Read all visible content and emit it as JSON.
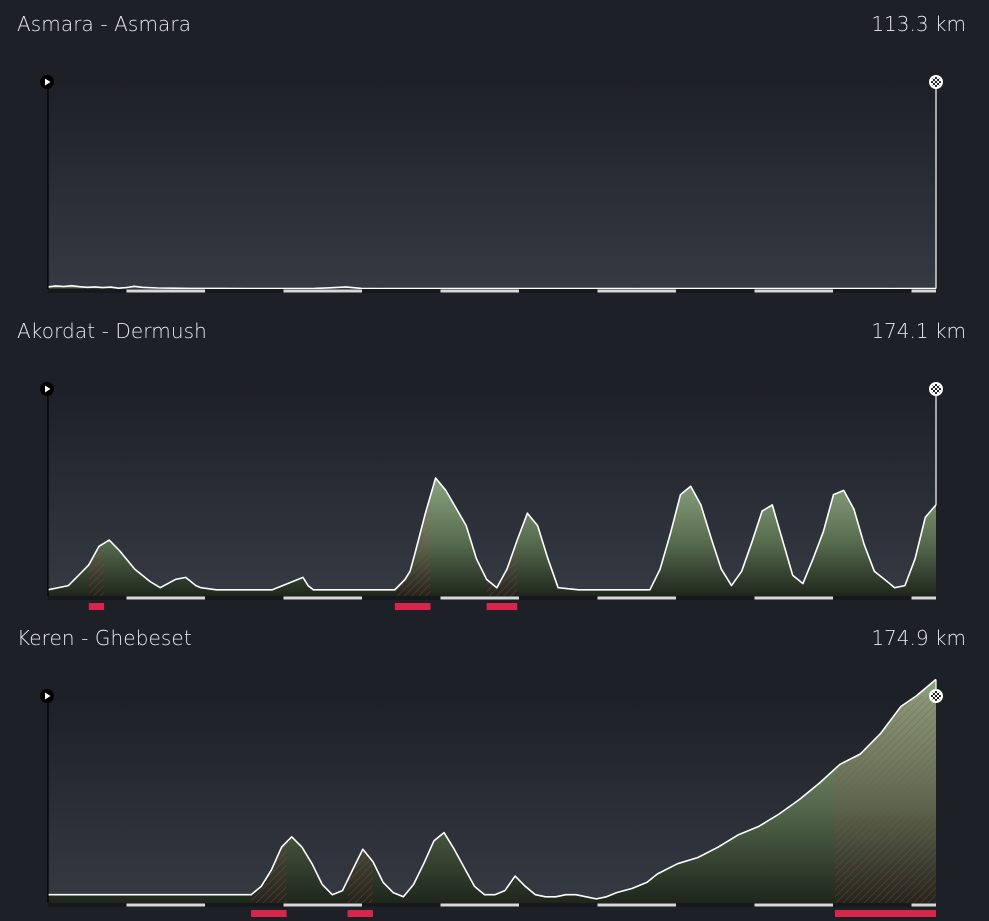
{
  "colors": {
    "background": "#1d2026",
    "profile_fill_light": "#8fa883",
    "profile_fill_dark": "#1e261c",
    "profile_line": "#ffffff",
    "climb_marker": "#d7264a",
    "km_segment_light": "#d8d8d8",
    "km_segment_dark": "#15181c"
  },
  "icons": {
    "start": "play-flag-icon",
    "finish": "checkered-flag-icon"
  },
  "stages": [
    {
      "title": "Asmara - Asmara",
      "distance": "113.3 km"
    },
    {
      "title": "Akordat - Dermush",
      "distance": "174.1 km"
    },
    {
      "title": "Keren - Ghebeset",
      "distance": "174.9 km"
    }
  ],
  "chart_data": [
    {
      "type": "area",
      "title": "Asmara - Asmara",
      "total_km": 113.3,
      "ylim": [
        0,
        100
      ],
      "x": [
        0,
        1,
        2,
        3,
        4,
        5,
        6,
        7,
        8,
        9,
        10,
        11,
        12,
        14,
        16,
        18,
        22,
        26,
        30,
        34,
        36,
        38,
        40,
        45,
        50,
        55,
        60,
        70,
        80,
        90,
        100,
        113.3
      ],
      "y": [
        1,
        1.5,
        1.2,
        1.6,
        1.1,
        0.8,
        1,
        0.7,
        0.9,
        0.4,
        0.7,
        1.3,
        0.8,
        0.5,
        0.4,
        0.3,
        0.3,
        0.2,
        0.2,
        0.3,
        0.6,
        1,
        0.3,
        0.2,
        0.2,
        0.2,
        0.2,
        0.2,
        0.2,
        0.2,
        0.2,
        0.2
      ],
      "climbs": []
    },
    {
      "type": "area",
      "title": "Akordat - Dermush",
      "total_km": 174.1,
      "ylim": [
        0,
        100
      ],
      "x": [
        0,
        4,
        6,
        8,
        10,
        12,
        14,
        17,
        20,
        22,
        25,
        27,
        29,
        30,
        33,
        36,
        40,
        44,
        48,
        50,
        51,
        52,
        54,
        58,
        62,
        65,
        68,
        70,
        71,
        72,
        74,
        76,
        78,
        82,
        84,
        86,
        88,
        90,
        92,
        94,
        96,
        98,
        100,
        104,
        108,
        112,
        116,
        118,
        120,
        122,
        124,
        126,
        128,
        130,
        132,
        134,
        136,
        138,
        140,
        142,
        144,
        146,
        148,
        150,
        152,
        154,
        156,
        158,
        160,
        162,
        164,
        166,
        168,
        170,
        172,
        174.1
      ],
      "y": [
        3,
        5,
        10,
        15,
        24,
        27,
        22,
        13,
        7,
        4,
        8,
        9,
        5,
        4,
        3,
        3,
        3,
        3,
        7,
        9,
        5,
        3,
        3,
        3,
        3,
        3,
        3,
        8,
        12,
        21,
        40,
        57,
        51,
        34,
        18,
        8,
        4,
        13,
        27,
        40,
        34,
        18,
        4,
        3,
        3,
        3,
        3,
        3,
        13,
        30,
        49,
        53,
        44,
        28,
        13,
        5,
        12,
        26,
        41,
        44,
        27,
        10,
        6,
        18,
        31,
        49,
        51,
        42,
        25,
        12,
        8,
        4,
        5,
        18,
        38,
        44
      ],
      "climbs": [
        [
          8,
          11
        ],
        [
          68,
          75
        ],
        [
          86,
          92
        ]
      ]
    },
    {
      "type": "area",
      "title": "Keren - Ghebeset",
      "total_km": 174.9,
      "ylim": [
        0,
        100
      ],
      "x": [
        0,
        10,
        20,
        30,
        36,
        40,
        42,
        44,
        46,
        48,
        50,
        52,
        54,
        56,
        58,
        60,
        62,
        64,
        66,
        68,
        70,
        72,
        74,
        76,
        78,
        80,
        82,
        84,
        86,
        88,
        90,
        92,
        94,
        96,
        98,
        100,
        102,
        104,
        106,
        108,
        110,
        112,
        115,
        118,
        120,
        124,
        128,
        132,
        136,
        140,
        144,
        148,
        152,
        156,
        160,
        164,
        168,
        171,
        174.9
      ],
      "y": [
        4,
        4,
        4,
        4,
        4,
        4,
        8,
        16,
        27,
        32,
        27,
        19,
        9,
        4,
        6,
        16,
        26,
        20,
        10,
        5,
        3,
        9,
        19,
        30,
        34,
        26,
        17,
        8,
        4,
        4,
        6,
        13,
        8,
        4,
        3,
        3,
        4,
        4,
        3,
        2,
        3,
        5,
        7,
        10,
        14,
        19,
        22,
        27,
        33,
        37,
        43,
        50,
        58,
        67,
        72,
        82,
        95,
        100,
        108
      ],
      "climbs": [
        [
          40,
          47
        ],
        [
          59,
          64
        ],
        [
          155,
          174.9
        ]
      ]
    }
  ]
}
